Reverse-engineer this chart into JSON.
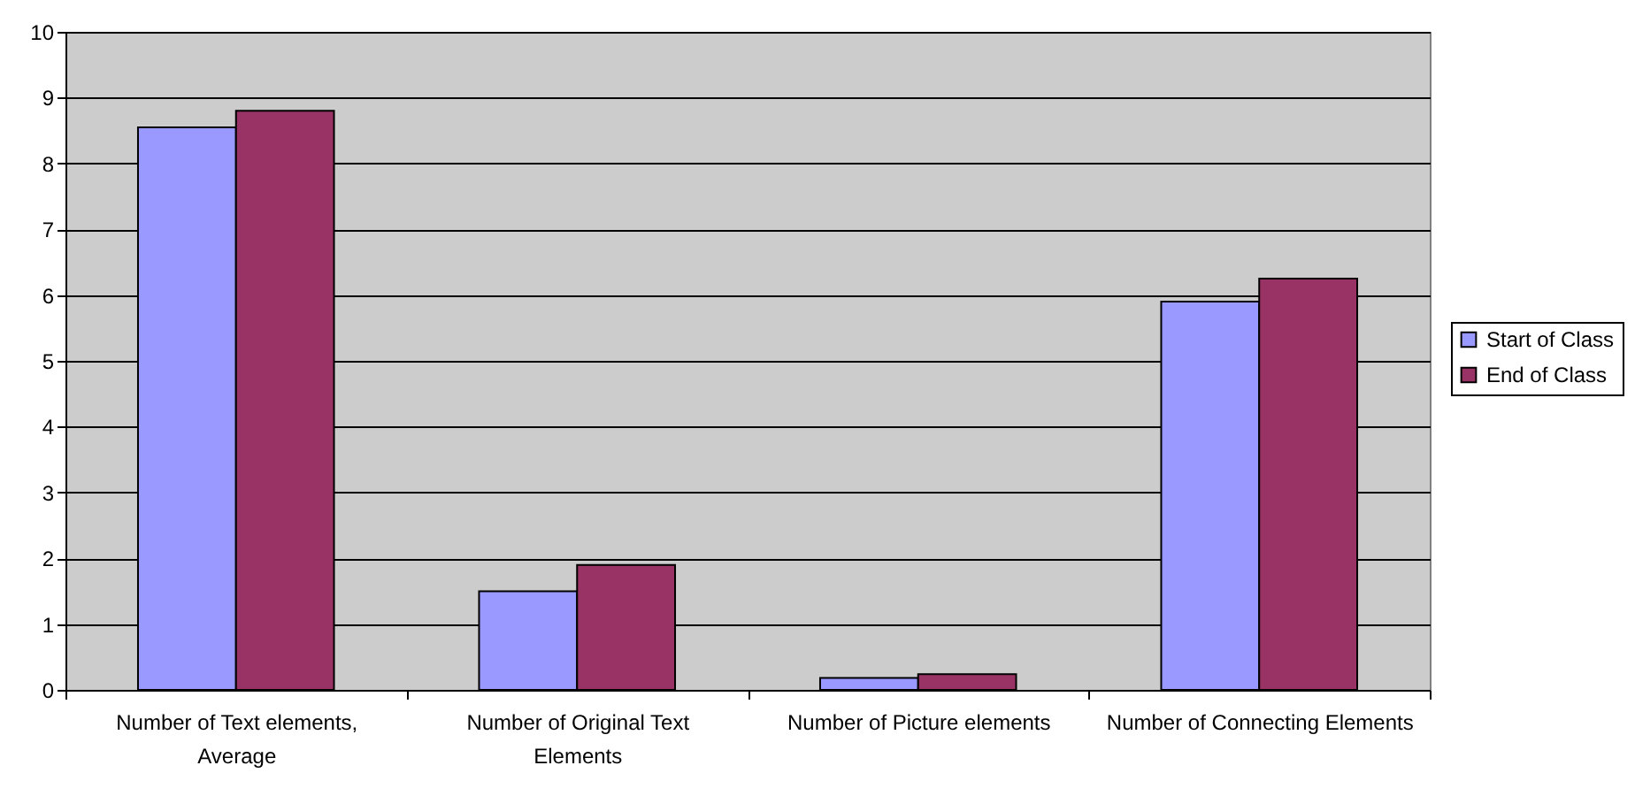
{
  "chart_data": {
    "type": "bar",
    "categories": [
      "Number of Text elements, Average",
      "Number of Original Text Elements",
      "Number of Picture elements",
      "Number of Connecting Elements"
    ],
    "series": [
      {
        "name": "Start of Class",
        "color": "#9999ff",
        "values": [
          8.55,
          1.5,
          0.18,
          5.9
        ]
      },
      {
        "name": "End of Class",
        "color": "#993366",
        "values": [
          8.8,
          1.9,
          0.24,
          6.25
        ]
      }
    ],
    "ylim": [
      0,
      10
    ],
    "yticks": [
      0,
      1,
      2,
      3,
      4,
      5,
      6,
      7,
      8,
      9,
      10
    ],
    "grid": "y",
    "legend": "right"
  }
}
